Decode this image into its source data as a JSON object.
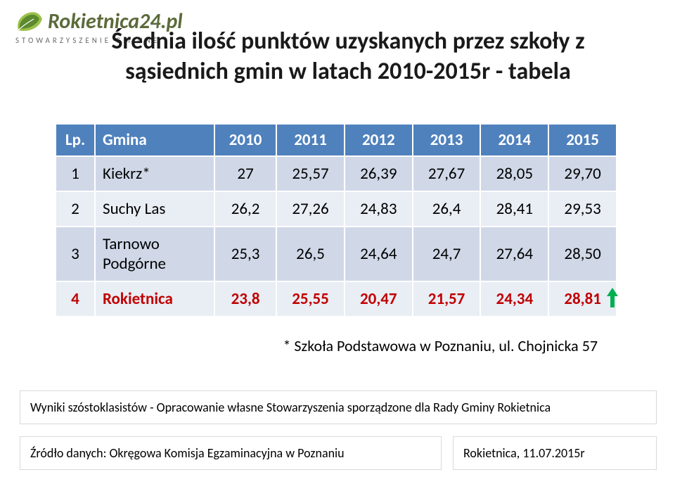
{
  "logo": {
    "name": "Rokietnica24",
    "suffix": ".pl",
    "subtitle": "STOWARZYSZENIE GMINNE",
    "leaf_color_light": "#9cc04a",
    "leaf_color_dark": "#5c8a2e",
    "text_color": "#5b6b3a"
  },
  "title": {
    "line1": "Średnia ilość punktów uzyskanych przez szkoły z",
    "line2": "sąsiednich gmin w latach  2010-2015r - tabela",
    "fontsize": 34,
    "color": "#1a1a1a"
  },
  "table": {
    "type": "table",
    "header_bg": "#4f81bd",
    "header_text_color": "#ffffff",
    "row_odd_bg": "#d0d8e8",
    "row_even_bg": "#e9edf4",
    "highlight_color": "#c00000",
    "border_color": "#ffffff",
    "fontsize": 23,
    "columns": [
      "Lp.",
      "Gmina",
      "2010",
      "2011",
      "2012",
      "2013",
      "2014",
      "2015"
    ],
    "rows": [
      {
        "lp": "1",
        "gmina": "Kiekrz*",
        "vals": [
          "27",
          "25,57",
          "26,39",
          "27,67",
          "28,05",
          "29,70"
        ],
        "highlight": false,
        "row_class": "row-odd"
      },
      {
        "lp": "2",
        "gmina": "Suchy Las",
        "vals": [
          "26,2",
          "27,26",
          "24,83",
          "26,4",
          "28,41",
          "29,53"
        ],
        "highlight": false,
        "row_class": "row-even"
      },
      {
        "lp": "3",
        "gmina": "Tarnowo Podgórne",
        "vals": [
          "25,3",
          "26,5",
          "24,64",
          "24,7",
          "27,64",
          "28,50"
        ],
        "highlight": false,
        "row_class": "row-odd"
      },
      {
        "lp": "4",
        "gmina": "Rokietnica",
        "vals": [
          "23,8",
          "25,55",
          "20,47",
          "21,57",
          "24,34",
          "28,81"
        ],
        "highlight": true,
        "row_class": "highlight",
        "arrow": true
      }
    ],
    "arrow_color": "#00b050"
  },
  "footnote": "* Szkoła Podstawowa w Poznaniu, ul. Chojnicka 57",
  "source": "Wyniki szóstoklasistów - Opracowanie własne Stowarzyszenia sporządzone dla Rady Gminy Rokietnica",
  "data_source": "Źródło danych: Okręgowa Komisja Egzaminacyjna w Poznaniu",
  "date": "Rokietnica, 11.07.2015r",
  "box_border_color": "#d9d9d9"
}
